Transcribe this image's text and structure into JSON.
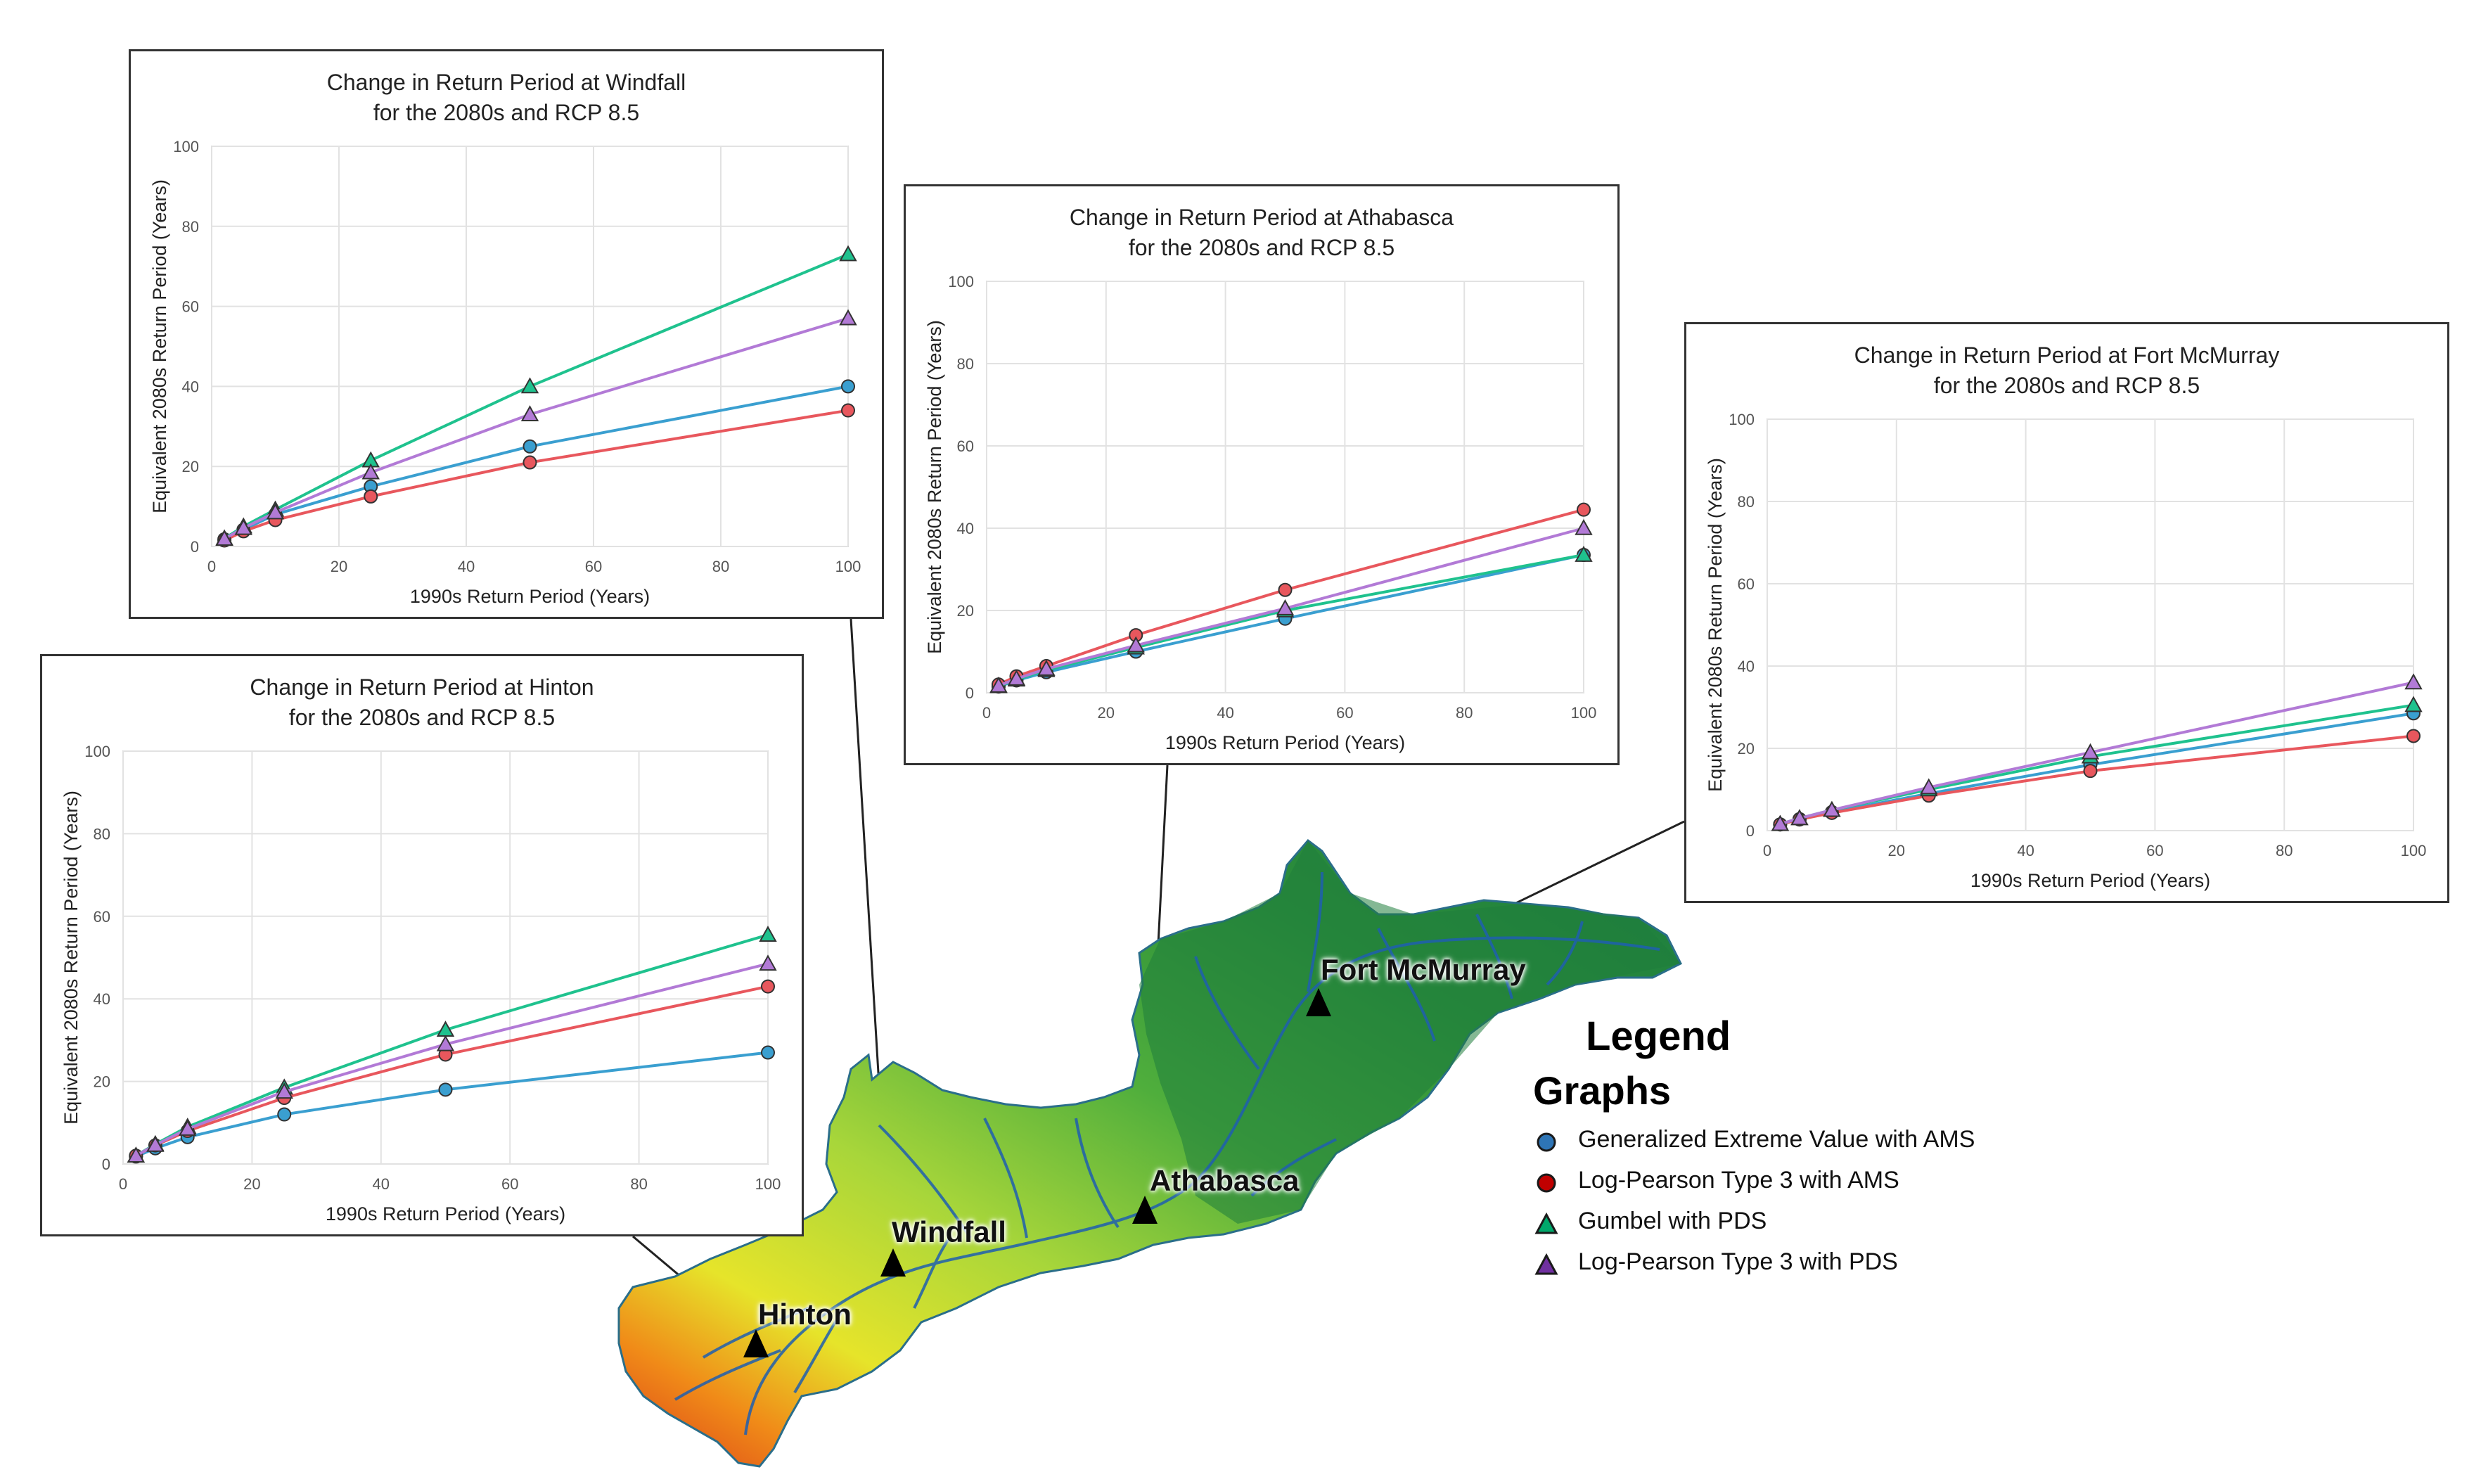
{
  "legend": {
    "title": "Legend",
    "subtitle": "Graphs",
    "items": [
      {
        "label": "Generalized Extreme Value with AMS",
        "marker": "circle",
        "color": "#2e75b6"
      },
      {
        "label": "Log-Pearson Type 3 with AMS",
        "marker": "circle",
        "color": "#c00000"
      },
      {
        "label": "Gumbel with PDS",
        "marker": "triangle",
        "color": "#00a86b"
      },
      {
        "label": "Log-Pearson Type 3 with PDS",
        "marker": "triangle",
        "color": "#7030a0"
      }
    ]
  },
  "map": {
    "sites": [
      {
        "name": "Fort McMurray"
      },
      {
        "name": "Athabasca"
      },
      {
        "name": "Windfall"
      },
      {
        "name": "Hinton"
      }
    ]
  },
  "chart_data": [
    {
      "type": "line",
      "site": "Windfall",
      "title": "Change in Return Period at Windfall",
      "subtitle": "for the 2080s and RCP 8.5",
      "xlabel": "1990s Return Period (Years)",
      "ylabel": "Equivalent 2080s Return Period (Years)",
      "xlim": [
        0,
        100
      ],
      "ylim": [
        0,
        100
      ],
      "xticks": [
        0,
        20,
        40,
        60,
        80,
        100
      ],
      "yticks": [
        0,
        20,
        40,
        60,
        80,
        100
      ],
      "grid": true,
      "x": [
        2,
        5,
        10,
        25,
        50,
        100
      ],
      "series": [
        {
          "name": "Generalized Extreme Value with AMS",
          "color": "#3a9fd0",
          "marker": "circle",
          "values": [
            1.8,
            4.2,
            8.0,
            15.0,
            25.0,
            40.0
          ]
        },
        {
          "name": "Log-Pearson Type 3 with AMS",
          "color": "#e8575d",
          "marker": "circle",
          "values": [
            1.5,
            3.8,
            6.6,
            12.5,
            21.0,
            34.0
          ]
        },
        {
          "name": "Gumbel with PDS",
          "color": "#1fc28e",
          "marker": "triangle",
          "values": [
            2.0,
            5.0,
            9.2,
            21.5,
            40.0,
            73.0
          ]
        },
        {
          "name": "Log-Pearson Type 3 with PDS",
          "color": "#b27ad6",
          "marker": "triangle",
          "values": [
            1.9,
            4.6,
            8.5,
            18.5,
            33.0,
            57.0
          ]
        }
      ]
    },
    {
      "type": "line",
      "site": "Athabasca",
      "title": "Change in Return Period at Athabasca",
      "subtitle": "for the 2080s and RCP 8.5",
      "xlabel": "1990s Return Period (Years)",
      "ylabel": "Equivalent 2080s Return Period (Years)",
      "xlim": [
        0,
        100
      ],
      "ylim": [
        0,
        100
      ],
      "xticks": [
        0,
        20,
        40,
        60,
        80,
        100
      ],
      "yticks": [
        0,
        20,
        40,
        60,
        80,
        100
      ],
      "grid": true,
      "x": [
        2,
        5,
        10,
        25,
        50,
        100
      ],
      "series": [
        {
          "name": "Generalized Extreme Value with AMS",
          "color": "#3a9fd0",
          "marker": "circle",
          "values": [
            1.5,
            3.0,
            5.0,
            10.0,
            18.0,
            33.5
          ]
        },
        {
          "name": "Log-Pearson Type 3 with AMS",
          "color": "#e8575d",
          "marker": "circle",
          "values": [
            2.0,
            4.0,
            6.5,
            14.0,
            25.0,
            44.5
          ]
        },
        {
          "name": "Gumbel with PDS",
          "color": "#1fc28e",
          "marker": "triangle",
          "values": [
            1.6,
            3.2,
            5.5,
            11.0,
            20.0,
            33.5
          ]
        },
        {
          "name": "Log-Pearson Type 3 with PDS",
          "color": "#b27ad6",
          "marker": "triangle",
          "values": [
            1.7,
            3.4,
            5.8,
            11.5,
            20.5,
            40.0
          ]
        }
      ]
    },
    {
      "type": "line",
      "site": "Fort McMurray",
      "title": "Change in Return Period at Fort McMurray",
      "subtitle": "for the 2080s and RCP 8.5",
      "xlabel": "1990s Return Period (Years)",
      "ylabel": "Equivalent 2080s Return Period (Years)",
      "xlim": [
        0,
        100
      ],
      "ylim": [
        0,
        100
      ],
      "xticks": [
        0,
        20,
        40,
        60,
        80,
        100
      ],
      "yticks": [
        0,
        20,
        40,
        60,
        80,
        100
      ],
      "grid": true,
      "x": [
        2,
        5,
        10,
        25,
        50,
        100
      ],
      "series": [
        {
          "name": "Generalized Extreme Value with AMS",
          "color": "#3a9fd0",
          "marker": "circle",
          "values": [
            1.5,
            2.8,
            4.5,
            9.0,
            16.0,
            28.5
          ]
        },
        {
          "name": "Log-Pearson Type 3 with AMS",
          "color": "#e8575d",
          "marker": "circle",
          "values": [
            1.5,
            2.7,
            4.3,
            8.5,
            14.5,
            23.0
          ]
        },
        {
          "name": "Gumbel with PDS",
          "color": "#1fc28e",
          "marker": "triangle",
          "values": [
            1.6,
            3.0,
            5.0,
            10.0,
            18.0,
            30.5
          ]
        },
        {
          "name": "Log-Pearson Type 3 with PDS",
          "color": "#b27ad6",
          "marker": "triangle",
          "values": [
            1.6,
            3.0,
            5.0,
            10.5,
            19.0,
            36.0
          ]
        }
      ]
    },
    {
      "type": "line",
      "site": "Hinton",
      "title": "Change in Return Period at Hinton",
      "subtitle": "for the 2080s and RCP 8.5",
      "xlabel": "1990s Return Period (Years)",
      "ylabel": "Equivalent 2080s Return Period (Years)",
      "xlim": [
        0,
        100
      ],
      "ylim": [
        0,
        100
      ],
      "xticks": [
        0,
        20,
        40,
        60,
        80,
        100
      ],
      "yticks": [
        0,
        20,
        40,
        60,
        80,
        100
      ],
      "grid": true,
      "x": [
        2,
        5,
        10,
        25,
        50,
        100
      ],
      "series": [
        {
          "name": "Generalized Extreme Value with AMS",
          "color": "#3a9fd0",
          "marker": "circle",
          "values": [
            1.8,
            3.8,
            6.5,
            12.0,
            18.0,
            27.0
          ]
        },
        {
          "name": "Log-Pearson Type 3 with AMS",
          "color": "#e8575d",
          "marker": "circle",
          "values": [
            2.0,
            4.5,
            8.0,
            16.0,
            26.5,
            43.0
          ]
        },
        {
          "name": "Gumbel with PDS",
          "color": "#1fc28e",
          "marker": "triangle",
          "values": [
            2.0,
            4.8,
            9.0,
            18.5,
            32.5,
            55.5
          ]
        },
        {
          "name": "Log-Pearson Type 3 with PDS",
          "color": "#b27ad6",
          "marker": "triangle",
          "values": [
            2.0,
            4.6,
            8.5,
            17.5,
            29.0,
            48.5
          ]
        }
      ]
    }
  ]
}
